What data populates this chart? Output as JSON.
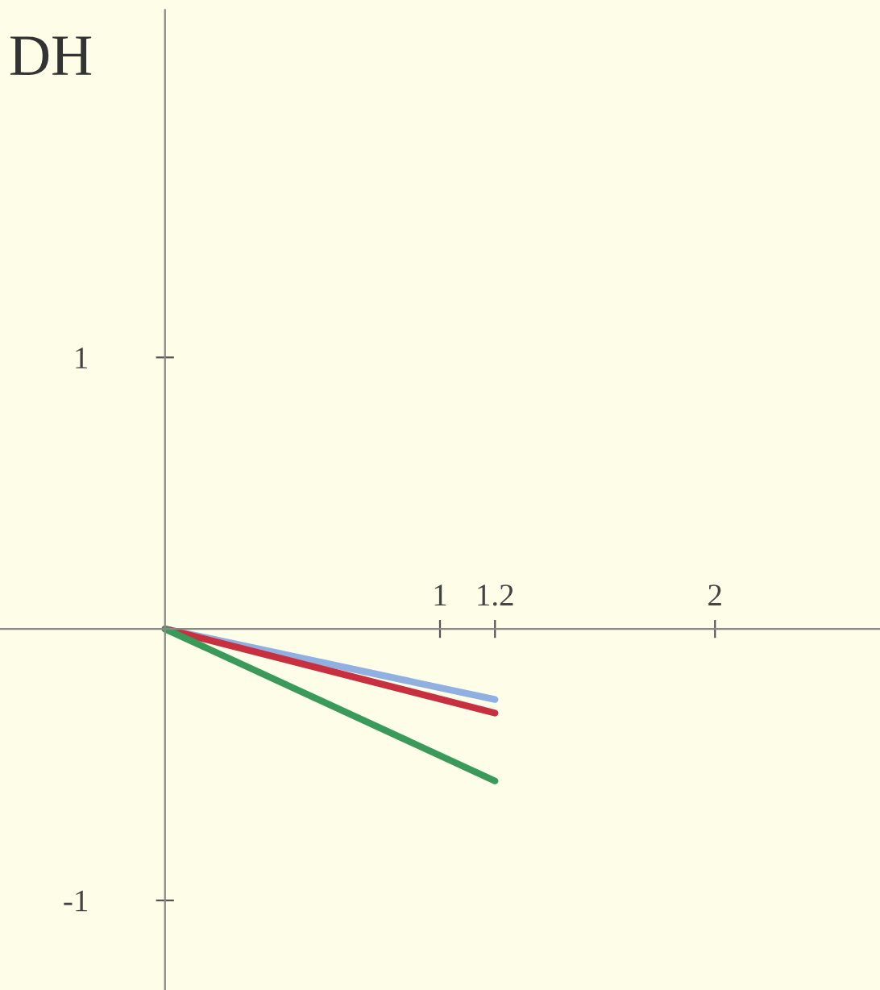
{
  "chart_data": {
    "type": "line",
    "ylabel": "DH",
    "x": [
      0,
      1.2
    ],
    "series": [
      {
        "color": "#8fb0e0",
        "values": [
          0,
          -0.26
        ]
      },
      {
        "color": "#c83040",
        "values": [
          0,
          -0.31
        ]
      },
      {
        "color": "#3a9a5a",
        "values": [
          0,
          -0.56
        ]
      }
    ],
    "xlim": [
      -0.6,
      2.6
    ],
    "ylim": [
      -1.33,
      2.28
    ],
    "xticks": [
      1,
      1.2,
      2
    ],
    "yticks": [
      -1,
      1
    ],
    "grid": false,
    "legend": false
  }
}
